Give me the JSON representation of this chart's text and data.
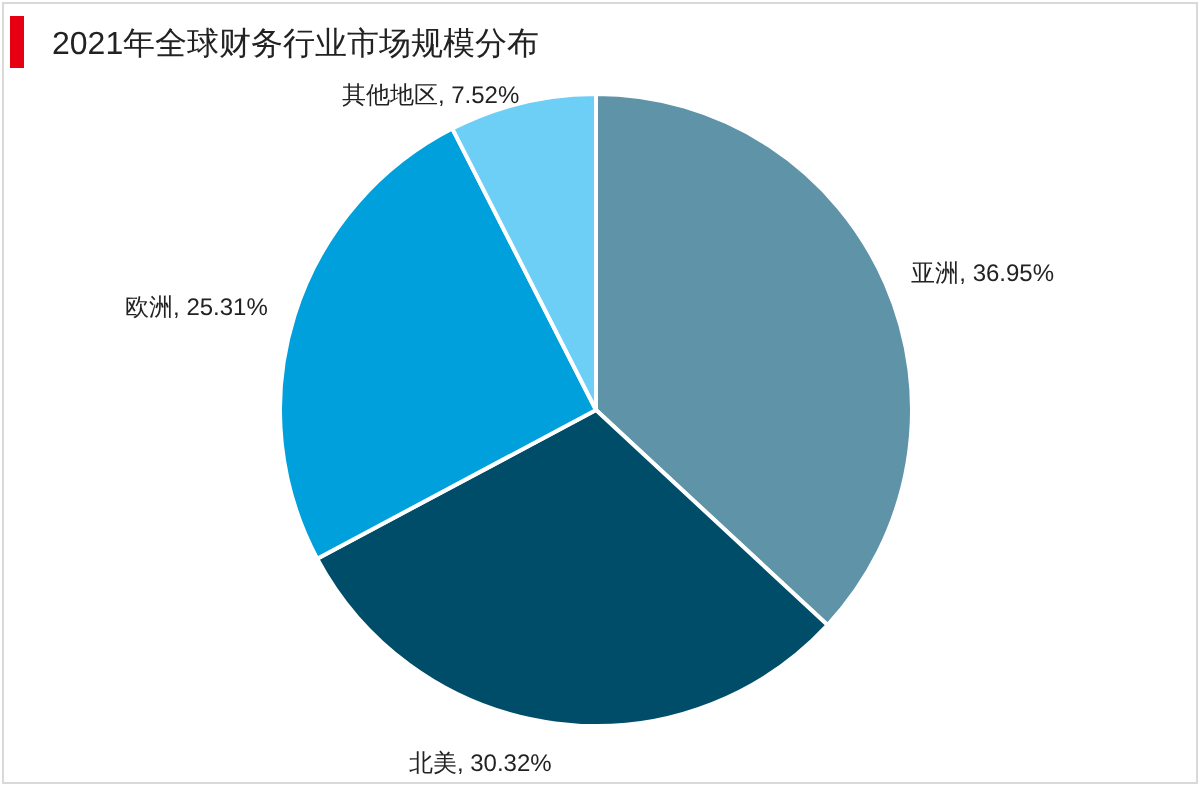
{
  "chart_data": {
    "type": "pie",
    "title": "2021年全球财务行业市场规模分布",
    "categories": [
      "亚洲",
      "北美",
      "欧洲",
      "其他地区"
    ],
    "values": [
      36.95,
      30.32,
      25.31,
      7.52
    ],
    "value_labels": [
      "36.95%",
      "30.32%",
      "25.31%",
      "7.52%"
    ],
    "colors": [
      "#5f93a8",
      "#004d6a",
      "#00a0dc",
      "#6dcff6"
    ]
  }
}
